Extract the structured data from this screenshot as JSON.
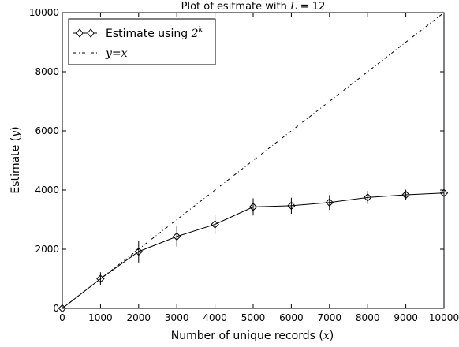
{
  "chart_data": {
    "type": "line",
    "title": "Plot of esitmate with L = 12",
    "xlabel": "Number of unique records (x)",
    "ylabel": "Estimate (y)",
    "xlim": [
      0,
      10000
    ],
    "ylim": [
      0,
      10000
    ],
    "xticks": [
      "0",
      "1000",
      "2000",
      "3000",
      "4000",
      "5000",
      "6000",
      "7000",
      "8000",
      "9000",
      "10000"
    ],
    "yticks": [
      "0",
      "2000",
      "4000",
      "6000",
      "8000",
      "10000"
    ],
    "grid": false,
    "legend_position": "top-left",
    "x": [
      0,
      1000,
      2000,
      3000,
      4000,
      5000,
      6000,
      7000,
      8000,
      9000,
      10000
    ],
    "series": [
      {
        "name": "Estimate using 2^k",
        "style": "solid",
        "marker": "diamond",
        "color": "#000000",
        "values": [
          0,
          1000,
          1920,
          2430,
          2840,
          3430,
          3470,
          3580,
          3750,
          3840,
          3900
        ],
        "error": [
          0,
          220,
          370,
          340,
          330,
          290,
          270,
          250,
          220,
          170,
          130
        ]
      },
      {
        "name": "y=x",
        "style": "dashdot",
        "color": "#000000",
        "values": [
          0,
          1000,
          2000,
          3000,
          4000,
          5000,
          6000,
          7000,
          8000,
          9000,
          10000
        ]
      }
    ]
  }
}
